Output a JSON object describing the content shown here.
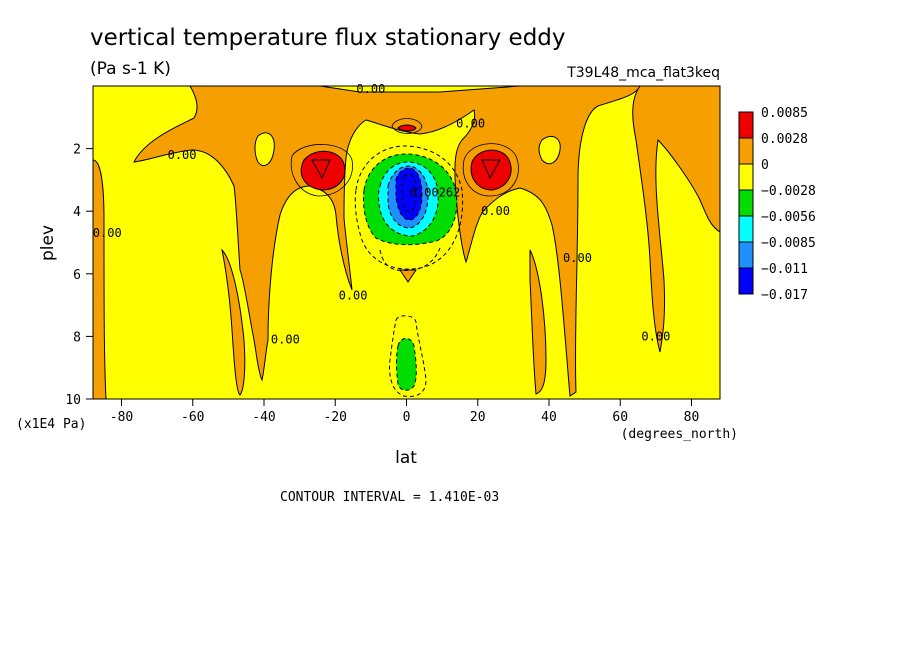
{
  "title": "vertical temperature flux stationary eddy",
  "units": "(Pa s-1 K)",
  "run_label": "T39L48_mca_flat3keq",
  "contour_interval": "CONTOUR INTERVAL = 1.410E-03",
  "chart_data": {
    "type": "heatmap",
    "title": "vertical temperature flux stationary eddy",
    "subtitle": "(Pa s-1 K)",
    "xlabel": "lat",
    "xunits": "(degrees_north)",
    "ylabel": "plev",
    "yunits": "(x1E4 Pa)",
    "xlim": [
      -88,
      88
    ],
    "ylim": [
      10,
      0
    ],
    "x_ticks": [
      -80,
      -60,
      -40,
      -20,
      0,
      20,
      40,
      60,
      80
    ],
    "y_ticks": [
      2,
      4,
      6,
      8,
      10
    ],
    "legend": {
      "placement": "right",
      "levels": [
        "0.0085",
        "0.0028",
        "0",
        "−0.0028",
        "−0.0056",
        "−0.0085",
        "−0.011",
        "−0.017"
      ],
      "colors": [
        "#ee0000",
        "#f5a000",
        "#ffff00",
        "#00dd00",
        "#00ffff",
        "#1e90ff",
        "#0000ff"
      ]
    },
    "contour_labels": [
      {
        "text": "0.00",
        "lat": -10,
        "plev": 0.1
      },
      {
        "text": "0.00",
        "lat": 18,
        "plev": 1.2
      },
      {
        "text": "0.00",
        "lat": -63,
        "plev": 2.2
      },
      {
        "text": "0.00",
        "lat": -84,
        "plev": 4.7
      },
      {
        "text": "0.00",
        "lat": 25,
        "plev": 4.0
      },
      {
        "text": "0.00",
        "lat": 48,
        "plev": 5.5
      },
      {
        "text": "0.00",
        "lat": -15,
        "plev": 6.7
      },
      {
        "text": "0.00",
        "lat": -34,
        "plev": 8.1
      },
      {
        "text": "0.00",
        "lat": 70,
        "plev": 8.0
      },
      {
        "text": "0.00262",
        "lat": 8,
        "plev": 3.4
      }
    ]
  },
  "colors": {
    "background": "#ffffff",
    "positive_small": "#f5a000",
    "positive_large": "#ee0000",
    "near_zero": "#ffff00",
    "negative_1": "#00dd00",
    "negative_2": "#00ffff",
    "negative_3": "#1e90ff",
    "negative_4": "#0000ff"
  }
}
